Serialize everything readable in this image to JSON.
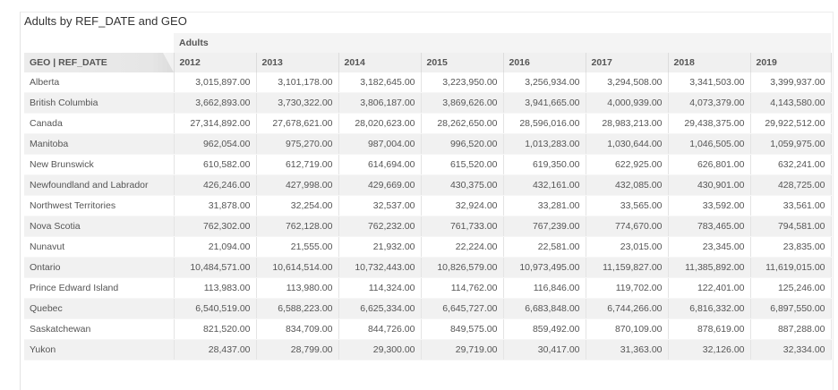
{
  "title": "Adults by REF_DATE and GEO",
  "measure_label": "Adults",
  "corner_label": "GEO | REF_DATE",
  "years": [
    "2012",
    "2013",
    "2014",
    "2015",
    "2016",
    "2017",
    "2018",
    "2019"
  ],
  "rows": [
    {
      "geo": "Alberta",
      "values": [
        "3,015,897.00",
        "3,101,178.00",
        "3,182,645.00",
        "3,223,950.00",
        "3,256,934.00",
        "3,294,508.00",
        "3,341,503.00",
        "3,399,937.00"
      ]
    },
    {
      "geo": "British Columbia",
      "values": [
        "3,662,893.00",
        "3,730,322.00",
        "3,806,187.00",
        "3,869,626.00",
        "3,941,665.00",
        "4,000,939.00",
        "4,073,379.00",
        "4,143,580.00"
      ]
    },
    {
      "geo": "Canada",
      "values": [
        "27,314,892.00",
        "27,678,621.00",
        "28,020,623.00",
        "28,262,650.00",
        "28,596,016.00",
        "28,983,213.00",
        "29,438,375.00",
        "29,922,512.00"
      ]
    },
    {
      "geo": "Manitoba",
      "values": [
        "962,054.00",
        "975,270.00",
        "987,004.00",
        "996,520.00",
        "1,013,283.00",
        "1,030,644.00",
        "1,046,505.00",
        "1,059,975.00"
      ]
    },
    {
      "geo": "New Brunswick",
      "values": [
        "610,582.00",
        "612,719.00",
        "614,694.00",
        "615,520.00",
        "619,350.00",
        "622,925.00",
        "626,801.00",
        "632,241.00"
      ]
    },
    {
      "geo": "Newfoundland and Labrador",
      "values": [
        "426,246.00",
        "427,998.00",
        "429,669.00",
        "430,375.00",
        "432,161.00",
        "432,085.00",
        "430,901.00",
        "428,725.00"
      ]
    },
    {
      "geo": "Northwest Territories",
      "values": [
        "31,878.00",
        "32,254.00",
        "32,537.00",
        "32,924.00",
        "33,281.00",
        "33,565.00",
        "33,592.00",
        "33,561.00"
      ]
    },
    {
      "geo": "Nova Scotia",
      "values": [
        "762,302.00",
        "762,128.00",
        "762,232.00",
        "761,733.00",
        "767,239.00",
        "774,670.00",
        "783,465.00",
        "794,581.00"
      ]
    },
    {
      "geo": "Nunavut",
      "values": [
        "21,094.00",
        "21,555.00",
        "21,932.00",
        "22,224.00",
        "22,581.00",
        "23,015.00",
        "23,345.00",
        "23,835.00"
      ]
    },
    {
      "geo": "Ontario",
      "values": [
        "10,484,571.00",
        "10,614,514.00",
        "10,732,443.00",
        "10,826,579.00",
        "10,973,495.00",
        "11,159,827.00",
        "11,385,892.00",
        "11,619,015.00"
      ]
    },
    {
      "geo": "Prince Edward Island",
      "values": [
        "113,983.00",
        "113,980.00",
        "114,324.00",
        "114,762.00",
        "116,846.00",
        "119,702.00",
        "122,401.00",
        "125,246.00"
      ]
    },
    {
      "geo": "Quebec",
      "values": [
        "6,540,519.00",
        "6,588,223.00",
        "6,625,334.00",
        "6,645,727.00",
        "6,683,848.00",
        "6,744,266.00",
        "6,816,332.00",
        "6,897,550.00"
      ]
    },
    {
      "geo": "Saskatchewan",
      "values": [
        "821,520.00",
        "834,709.00",
        "844,726.00",
        "849,575.00",
        "859,492.00",
        "870,109.00",
        "878,619.00",
        "887,288.00"
      ]
    },
    {
      "geo": "Yukon",
      "values": [
        "28,437.00",
        "28,799.00",
        "29,300.00",
        "29,719.00",
        "30,417.00",
        "31,363.00",
        "32,126.00",
        "32,334.00"
      ]
    }
  ]
}
